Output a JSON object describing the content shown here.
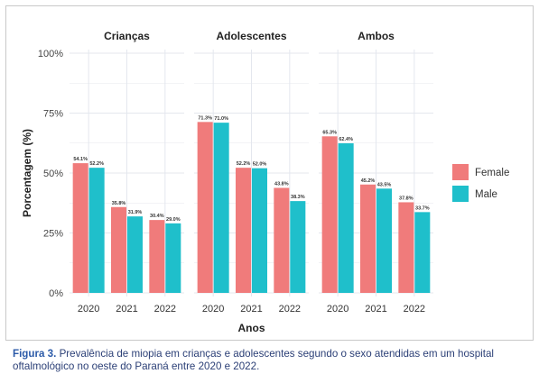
{
  "caption": {
    "label": "Figura 3.",
    "text": "Prevalência de miopia em crianças e adolescentes segundo o sexo atendidas em um hospital oftalmológico no oeste do Paraná entre 2020 e 2022."
  },
  "colors": {
    "female": "#F07B7B",
    "male": "#1FBFCB",
    "panel_bg": "#ffffff",
    "grid": "#E4E7EE",
    "text": "#222222"
  },
  "chart_data": {
    "type": "bar",
    "xlabel": "Anos",
    "ylabel": "Porcentagem (%)",
    "ylim": [
      0,
      100
    ],
    "yticks": [
      0,
      25,
      50,
      75,
      100
    ],
    "ytick_labels": [
      "0%",
      "25%",
      "50%",
      "75%",
      "100%"
    ],
    "categories": [
      "2020",
      "2021",
      "2022"
    ],
    "legend": {
      "position": "right",
      "entries": [
        "Female",
        "Male"
      ]
    },
    "grid": true,
    "facets": [
      {
        "title": "Crianças",
        "series": [
          {
            "name": "Female",
            "values": [
              54.1,
              35.8,
              30.4
            ],
            "labels": [
              "54.1%",
              "35.8%",
              "30.4%"
            ]
          },
          {
            "name": "Male",
            "values": [
              52.2,
              31.9,
              29.0
            ],
            "labels": [
              "52.2%",
              "31.9%",
              "29.0%"
            ]
          }
        ]
      },
      {
        "title": "Adolescentes",
        "series": [
          {
            "name": "Female",
            "values": [
              71.3,
              52.2,
              43.8
            ],
            "labels": [
              "71.3%",
              "52.2%",
              "43.8%"
            ]
          },
          {
            "name": "Male",
            "values": [
              71.0,
              52.0,
              38.3
            ],
            "labels": [
              "71.0%",
              "52.0%",
              "38.3%"
            ]
          }
        ]
      },
      {
        "title": "Ambos",
        "series": [
          {
            "name": "Female",
            "values": [
              65.3,
              45.2,
              37.8
            ],
            "labels": [
              "65.3%",
              "45.2%",
              "37.8%"
            ]
          },
          {
            "name": "Male",
            "values": [
              62.4,
              43.5,
              33.7
            ],
            "labels": [
              "62.4%",
              "43.5%",
              "33.7%"
            ]
          }
        ]
      }
    ]
  }
}
